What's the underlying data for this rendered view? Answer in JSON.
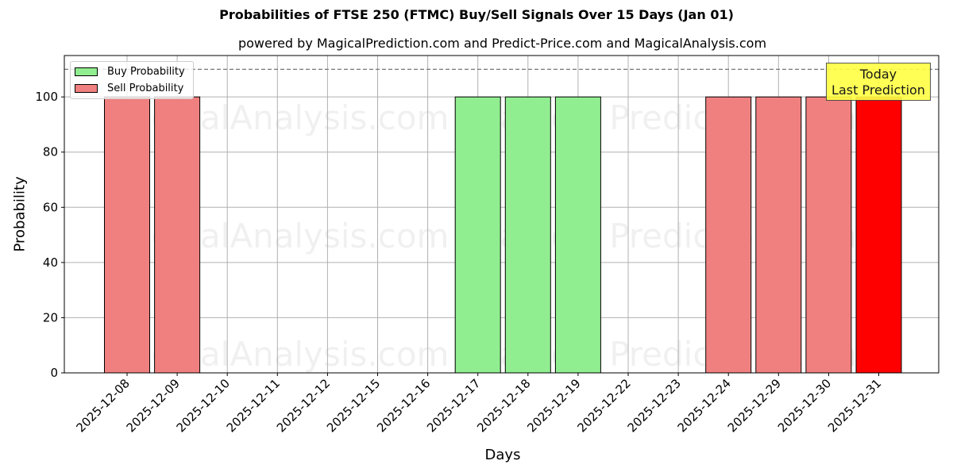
{
  "header": {
    "title": "Probabilities of FTSE 250 (FTMC) Buy/Sell Signals Over 15 Days (Jan 01)",
    "subtitle": "powered by MagicalPrediction.com and Predict-Price.com and MagicalAnalysis.com"
  },
  "legend": {
    "buy_label": "Buy Probability",
    "sell_label": "Sell Probability"
  },
  "annotation": {
    "line1": "Today",
    "line2": "Last Prediction"
  },
  "watermarks": [
    "MagicalAnalysis.com",
    "Magical Prediction.com"
  ],
  "colors": {
    "buy": "#90ee90",
    "sell": "#f08080",
    "today": "#ff0000",
    "annotation_bg": "#ffff44"
  },
  "chart_data": {
    "type": "bar",
    "title": "Probabilities of FTSE 250 (FTMC) Buy/Sell Signals Over 15 Days (Jan 01)",
    "subtitle": "powered by MagicalPrediction.com and Predict-Price.com and MagicalAnalysis.com",
    "xlabel": "Days",
    "ylabel": "Probability",
    "ylim": [
      0,
      115
    ],
    "yticks": [
      0,
      20,
      40,
      60,
      80,
      100
    ],
    "grid": true,
    "legend_position": "upper left",
    "reference_line": {
      "y": 110,
      "style": "dashed"
    },
    "categories": [
      "2025-12-08",
      "2025-12-09",
      "2025-12-10",
      "2025-12-11",
      "2025-12-12",
      "2025-12-15",
      "2025-12-16",
      "2025-12-17",
      "2025-12-18",
      "2025-12-19",
      "2025-12-22",
      "2025-12-23",
      "2025-12-24",
      "2025-12-29",
      "2025-12-30",
      "2025-12-31"
    ],
    "series": [
      {
        "name": "Buy Probability",
        "values": [
          0,
          0,
          0,
          0,
          0,
          0,
          0,
          100,
          100,
          100,
          0,
          0,
          0,
          0,
          0,
          0
        ]
      },
      {
        "name": "Sell Probability",
        "values": [
          100,
          100,
          0,
          0,
          0,
          0,
          0,
          0,
          0,
          0,
          0,
          0,
          100,
          100,
          100,
          100
        ]
      }
    ],
    "highlight": {
      "category": "2025-12-31",
      "label": "Today / Last Prediction",
      "color": "#ff0000"
    }
  }
}
